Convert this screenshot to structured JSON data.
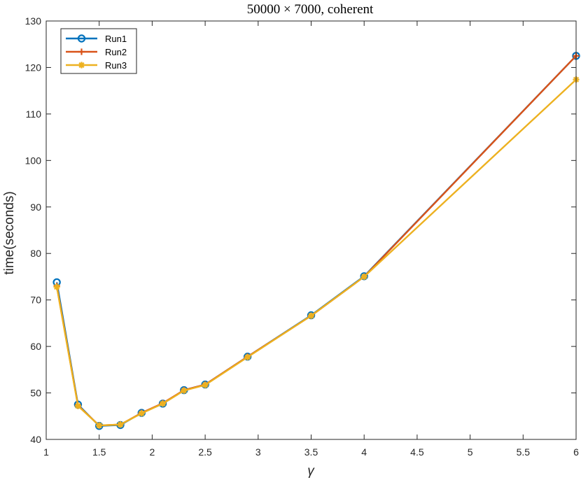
{
  "chart_data": {
    "type": "line",
    "title": "50000 × 7000, coherent",
    "xlabel": "γ",
    "ylabel": "time(seconds)",
    "xlim": [
      1,
      6
    ],
    "ylim": [
      40,
      130
    ],
    "xticks": [
      1,
      1.5,
      2,
      2.5,
      3,
      3.5,
      4,
      4.5,
      5,
      5.5,
      6
    ],
    "xtick_labels": [
      "1",
      "1.5",
      "2",
      "2.5",
      "3",
      "3.5",
      "4",
      "4.5",
      "5",
      "5.5",
      "6"
    ],
    "yticks": [
      40,
      50,
      60,
      70,
      80,
      90,
      100,
      110,
      120,
      130
    ],
    "ytick_labels": [
      "40",
      "50",
      "60",
      "70",
      "80",
      "90",
      "100",
      "110",
      "120",
      "130"
    ],
    "grid": false,
    "legend_position": "top-left",
    "x": [
      1.1,
      1.3,
      1.5,
      1.7,
      1.9,
      2.1,
      2.3,
      2.5,
      2.9,
      3.5,
      4,
      6
    ],
    "series": [
      {
        "name": "Run1",
        "color": "#0072bd",
        "marker": "circle",
        "values": [
          73.8,
          47.5,
          42.9,
          43.1,
          45.7,
          47.7,
          50.6,
          51.8,
          57.8,
          66.7,
          75.1,
          122.5
        ]
      },
      {
        "name": "Run2",
        "color": "#d95319",
        "marker": "plus",
        "values": [
          73.0,
          47.3,
          43.0,
          43.2,
          45.7,
          47.8,
          50.6,
          51.8,
          57.8,
          66.6,
          75.0,
          122.5
        ]
      },
      {
        "name": "Run3",
        "color": "#edb120",
        "marker": "asterisk",
        "values": [
          72.8,
          47.2,
          43.0,
          43.2,
          45.6,
          47.7,
          50.5,
          51.7,
          57.7,
          66.6,
          75.0,
          117.4
        ]
      }
    ]
  }
}
